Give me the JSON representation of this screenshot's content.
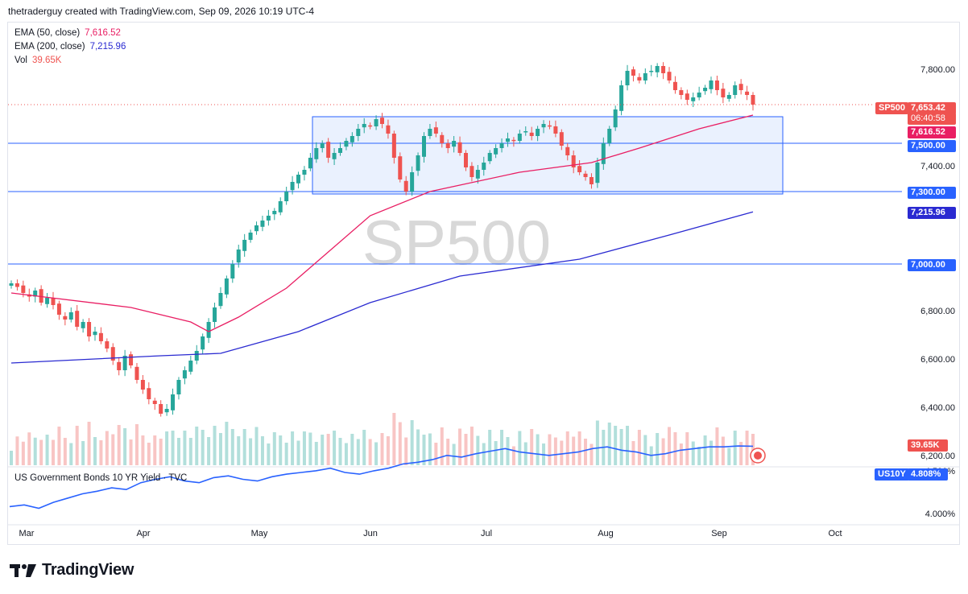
{
  "header": {
    "credit": "thetraderguy created with TradingView.com, Sep 09, 2026 10:19 UTC-4"
  },
  "legend": {
    "ema50_label": "EMA (50, close)",
    "ema50_value": "7,616.52",
    "ema200_label": "EMA (200, close)",
    "ema200_value": "7,215.96",
    "vol_label": "Vol",
    "vol_value": "39.65K"
  },
  "lower_pane": {
    "title": "US Government Bonds 10 YR Yield · TVC"
  },
  "watermark": "SP500",
  "footer": {
    "brand": "TradingView"
  },
  "colors": {
    "up": "#26a69a",
    "down": "#ef5350",
    "ema50": "#e91e63",
    "ema200": "#2a2ad1",
    "level": "#2962ff",
    "box_fill": "#e3ecfd",
    "yield": "#2962ff"
  },
  "chart_data": [
    {
      "type": "candlestick",
      "symbol": "SP500",
      "x_labels": [
        "Mar",
        "Apr",
        "May",
        "Jun",
        "Jul",
        "Aug",
        "Sep",
        "Oct"
      ],
      "y_ticks": [
        "7,800.00",
        "7,400.00",
        "6,800.00",
        "6,600.00",
        "6,400.00",
        "6,200.00"
      ],
      "ylim": [
        6170,
        7880
      ],
      "close_series": [
        6920,
        6905,
        6880,
        6865,
        6890,
        6840,
        6860,
        6830,
        6790,
        6770,
        6800,
        6740,
        6760,
        6700,
        6720,
        6680,
        6650,
        6600,
        6560,
        6620,
        6580,
        6520,
        6480,
        6440,
        6420,
        6380,
        6400,
        6460,
        6520,
        6560,
        6600,
        6640,
        6700,
        6760,
        6820,
        6880,
        6940,
        7000,
        7060,
        7100,
        7130,
        7160,
        7180,
        7200,
        7220,
        7260,
        7300,
        7340,
        7370,
        7390,
        7440,
        7480,
        7500,
        7440,
        7460,
        7480,
        7510,
        7530,
        7560,
        7580,
        7570,
        7600,
        7580,
        7540,
        7440,
        7350,
        7300,
        7380,
        7450,
        7530,
        7560,
        7540,
        7500,
        7480,
        7510,
        7460,
        7400,
        7360,
        7390,
        7420,
        7460,
        7480,
        7500,
        7520,
        7510,
        7540,
        7550,
        7530,
        7560,
        7580,
        7570,
        7540,
        7490,
        7450,
        7400,
        7380,
        7360,
        7330,
        7420,
        7500,
        7560,
        7640,
        7740,
        7800,
        7780,
        7760,
        7790,
        7800,
        7820,
        7790,
        7760,
        7720,
        7700,
        7680,
        7690,
        7710,
        7730,
        7760,
        7720,
        7690,
        7700,
        7740,
        7720,
        7700,
        7660
      ],
      "ema50": {
        "label": "EMA (50, close)",
        "last": 7616.52,
        "points": [
          [
            0,
            6880
          ],
          [
            20,
            6820
          ],
          [
            30,
            6760
          ],
          [
            33,
            6720
          ],
          [
            38,
            6780
          ],
          [
            46,
            6900
          ],
          [
            60,
            7200
          ],
          [
            70,
            7300
          ],
          [
            85,
            7380
          ],
          [
            97,
            7420
          ],
          [
            105,
            7480
          ],
          [
            115,
            7560
          ],
          [
            124,
            7616.52
          ]
        ]
      },
      "ema200": {
        "label": "EMA (200, close)",
        "last": 7215.96,
        "points": [
          [
            0,
            6590
          ],
          [
            25,
            6620
          ],
          [
            35,
            6630
          ],
          [
            48,
            6720
          ],
          [
            60,
            6840
          ],
          [
            75,
            6950
          ],
          [
            95,
            7020
          ],
          [
            110,
            7120
          ],
          [
            124,
            7215.96
          ]
        ]
      },
      "levels": [
        {
          "label": "7,500.00",
          "value": 7500
        },
        {
          "label": "7,300.00",
          "value": 7300
        },
        {
          "label": "7,000.00",
          "value": 7000
        }
      ],
      "range_box": {
        "from_index": 50,
        "to_index": 128,
        "top": 7610,
        "bottom": 7290
      },
      "price_tags": {
        "symbol": "SP500",
        "last": "7,653.42",
        "countdown": "06:40:58",
        "ema50": "7,616.52",
        "level_a": "7,500.00",
        "level_b": "7,300.00",
        "ema200": "7,215.96"
      },
      "volume": {
        "label": "Vol",
        "last": "39.65K"
      }
    },
    {
      "type": "line",
      "symbol": "US10Y",
      "title": "US Government Bonds 10 YR Yield · TVC",
      "y_ticks": [
        "4.500%",
        "4.000%"
      ],
      "ylim": [
        3.9,
        4.95
      ],
      "values": [
        4.1,
        4.12,
        4.08,
        4.15,
        4.2,
        4.25,
        4.28,
        4.32,
        4.3,
        4.38,
        4.42,
        4.45,
        4.4,
        4.38,
        4.44,
        4.46,
        4.42,
        4.4,
        4.45,
        4.48,
        4.5,
        4.52,
        4.55,
        4.5,
        4.48,
        4.52,
        4.55,
        4.6,
        4.62,
        4.65,
        4.7,
        4.68,
        4.72,
        4.75,
        4.78,
        4.74,
        4.72,
        4.7,
        4.72,
        4.74,
        4.78,
        4.8,
        4.76,
        4.74,
        4.7,
        4.72,
        4.76,
        4.78,
        4.8,
        4.8,
        4.81,
        4.808
      ],
      "last_tag": {
        "symbol": "US10Y",
        "value": "4.808%"
      }
    }
  ]
}
